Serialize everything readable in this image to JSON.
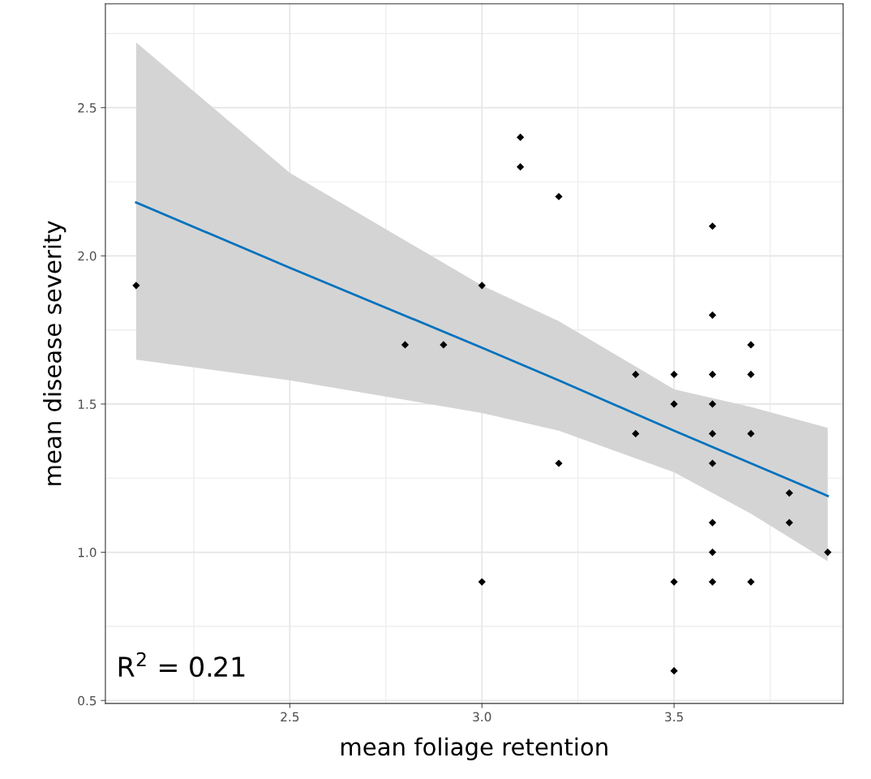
{
  "chart_data": {
    "type": "scatter",
    "xlabel": "mean foliage retention",
    "ylabel": "mean disease severity",
    "annotations": [
      "R$^{2}$ = 0.21"
    ],
    "series": [
      {
        "color": "#000000",
        "marker": "diamond",
        "x": [
          2.1,
          2.8,
          2.9,
          3.0,
          3.0,
          3.1,
          3.1,
          3.2,
          3.2,
          3.4,
          3.4,
          3.5,
          3.5,
          3.5,
          3.5,
          3.6,
          3.6,
          3.6,
          3.6,
          3.6,
          3.6,
          3.6,
          3.6,
          3.6,
          3.7,
          3.7,
          3.7,
          3.7,
          3.8,
          3.8,
          3.9
        ],
        "values": [
          1.9,
          1.7,
          1.7,
          1.9,
          0.9,
          2.4,
          2.3,
          2.2,
          1.3,
          1.6,
          1.4,
          1.6,
          1.5,
          0.9,
          0.6,
          2.1,
          1.8,
          1.6,
          1.5,
          1.4,
          1.3,
          1.1,
          1.0,
          0.9,
          1.7,
          1.6,
          1.4,
          0.9,
          1.2,
          1.1,
          1.0
        ]
      },
      {
        "type": "line",
        "color": "#0072bd",
        "marker": "none",
        "x": [
          2.1,
          2.5,
          3.0,
          3.2,
          3.5,
          3.7,
          3.9
        ],
        "values": [
          2.18,
          1.96,
          1.69,
          1.58,
          1.41,
          1.3,
          1.19
        ],
        "lower": [
          1.65,
          1.58,
          1.47,
          1.41,
          1.27,
          1.13,
          0.97
        ],
        "upper": [
          2.72,
          2.28,
          1.9,
          1.78,
          1.55,
          1.49,
          1.42
        ]
      }
    ],
    "xlim": [
      2.02,
      3.94
    ],
    "ylim": [
      0.49,
      2.85
    ],
    "xticks": [
      2.5,
      {
        "value": 3.0,
        "label": "3.0"
      },
      3.5
    ],
    "yticks": [
      0.5,
      {
        "value": 1.0,
        "label": "1.0"
      },
      1.5,
      {
        "value": 2.0,
        "label": "2.0"
      },
      2.5
    ],
    "grid": true
  }
}
